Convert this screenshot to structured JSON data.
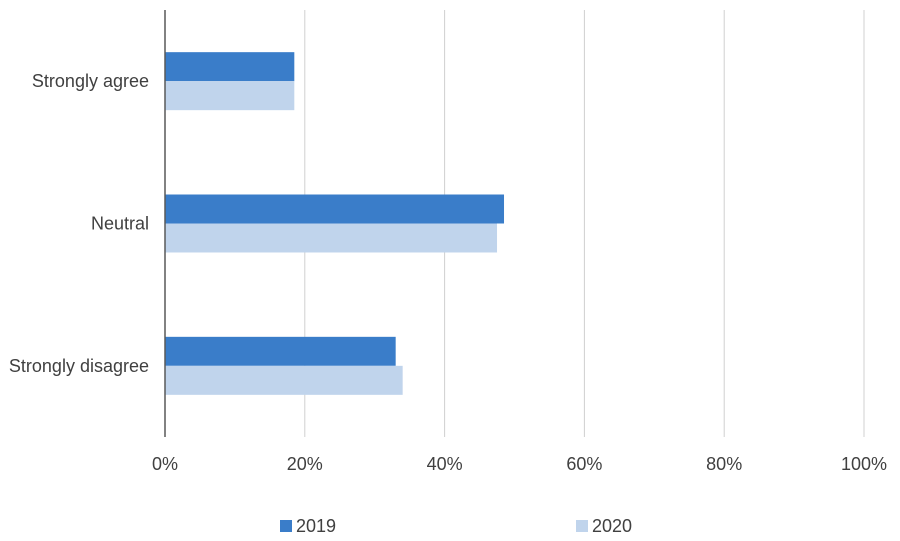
{
  "chart_data": {
    "type": "bar",
    "orientation": "horizontal",
    "categories": [
      "Strongly agree",
      "Neutral",
      "Strongly disagree"
    ],
    "series": [
      {
        "name": "2019",
        "color": "#3a7dc9",
        "values": [
          18.5,
          48.5,
          33
        ]
      },
      {
        "name": "2020",
        "color": "#c0d4ec",
        "values": [
          18.5,
          47.5,
          34
        ]
      }
    ],
    "xlim": [
      0,
      100
    ],
    "xticks": [
      "0%",
      "20%",
      "40%",
      "60%",
      "80%",
      "100%"
    ],
    "grid": true,
    "legend_position": "bottom"
  }
}
